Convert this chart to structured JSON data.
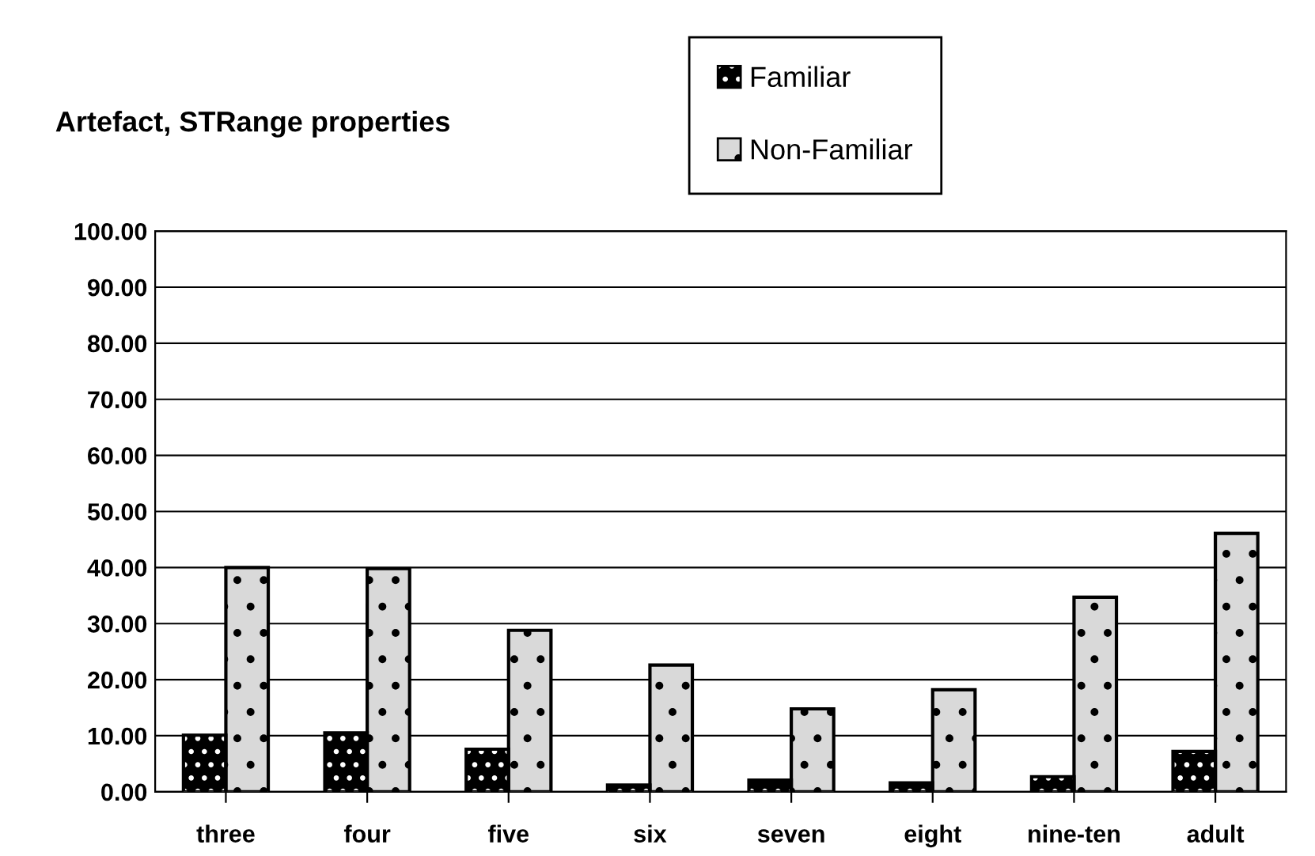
{
  "chart_data": {
    "type": "bar",
    "title": "Artefact, STRange properties",
    "categories": [
      "three",
      "four",
      "five",
      "six",
      "seven",
      "eight",
      "nine-ten",
      "adult"
    ],
    "series": [
      {
        "name": "Familiar",
        "color": "#000000",
        "values": [
          10.1,
          10.5,
          7.6,
          1.2,
          2.1,
          1.6,
          2.7,
          7.2
        ]
      },
      {
        "name": "Non-Familiar",
        "color": "#d9d9d9",
        "values": [
          40.0,
          39.8,
          28.8,
          22.6,
          14.8,
          18.2,
          34.7,
          46.1
        ]
      }
    ],
    "ylim": [
      0,
      100
    ],
    "yticks": [
      {
        "value": 0,
        "label": "0.00"
      },
      {
        "value": 10,
        "label": "10.00"
      },
      {
        "value": 20,
        "label": "20.00"
      },
      {
        "value": 30,
        "label": "30.00"
      },
      {
        "value": 40,
        "label": "40.00"
      },
      {
        "value": 50,
        "label": "50.00"
      },
      {
        "value": 60,
        "label": "60.00"
      },
      {
        "value": 70,
        "label": "70.00"
      },
      {
        "value": 80,
        "label": "80.00"
      },
      {
        "value": 90,
        "label": "90.00"
      },
      {
        "value": 100,
        "label": "100.00"
      }
    ],
    "grid": "y",
    "legend": "top"
  }
}
